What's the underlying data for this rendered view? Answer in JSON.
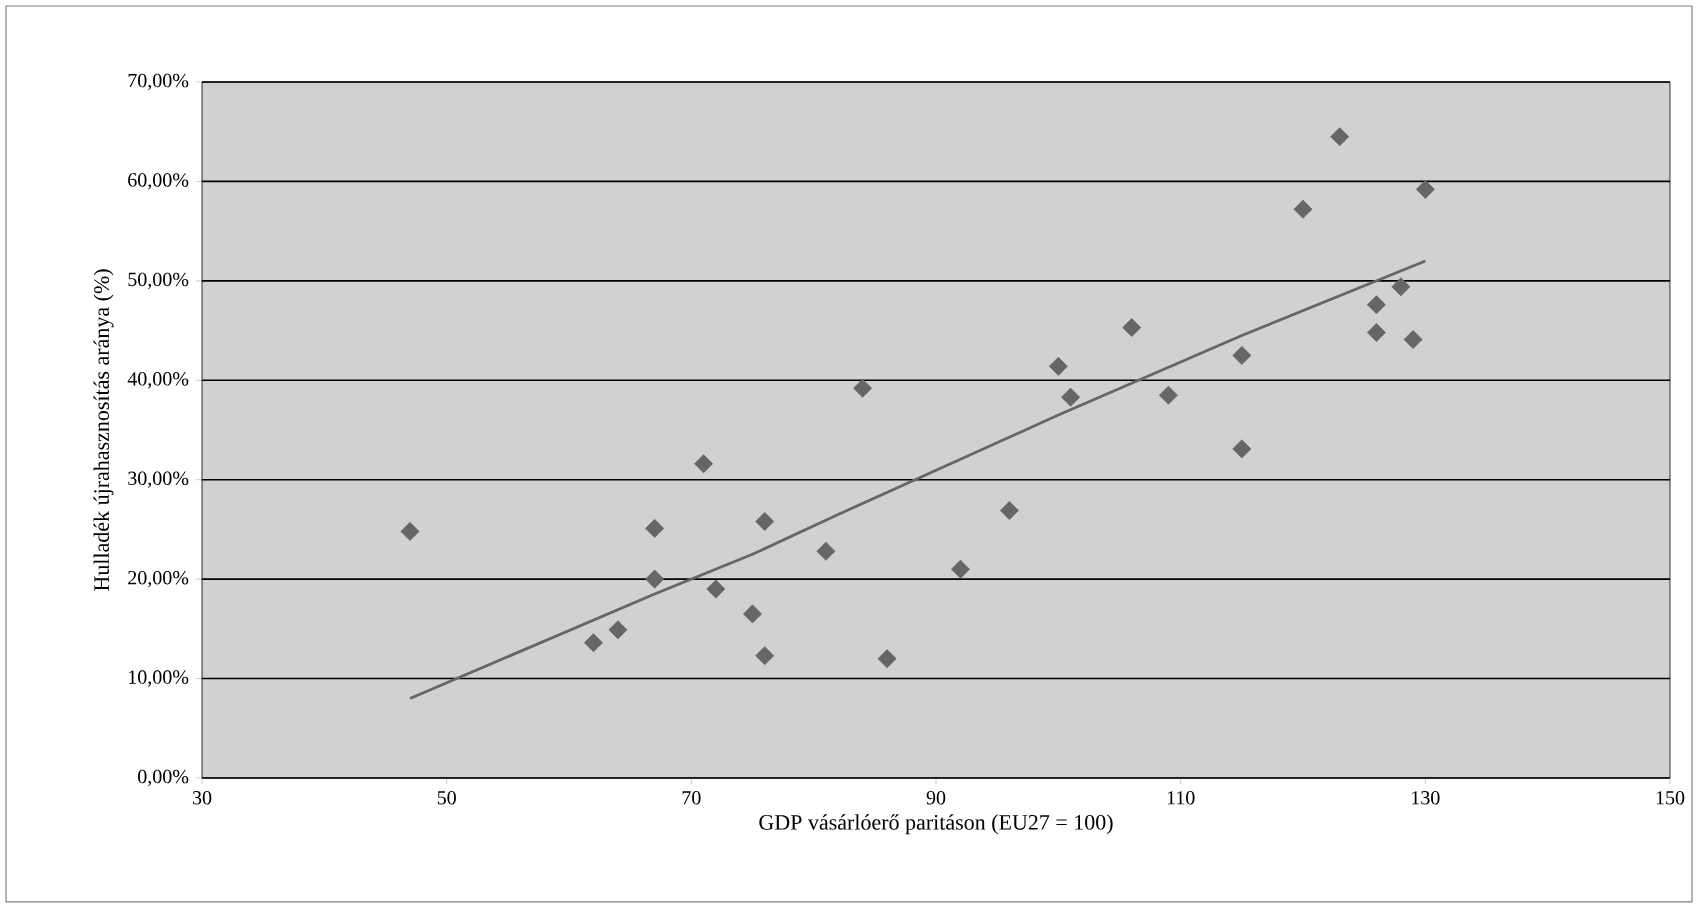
{
  "chart_data": {
    "type": "scatter",
    "xlabel": "GDP vásárlóerő paritáson (EU27 = 100)",
    "ylabel": "Hulladék újrahasznosítás aránya (%)",
    "xlim": [
      30,
      150
    ],
    "xticks": [
      30,
      50,
      70,
      90,
      110,
      130,
      150
    ],
    "ylim": [
      0,
      70
    ],
    "yticks": [
      {
        "value": 0,
        "label": "0,00%"
      },
      {
        "value": 10,
        "label": "10,00%"
      },
      {
        "value": 20,
        "label": "20,00%"
      },
      {
        "value": 30,
        "label": "30,00%"
      },
      {
        "value": 40,
        "label": "40,00%"
      },
      {
        "value": 50,
        "label": "50,00%"
      },
      {
        "value": 60,
        "label": "60,00%"
      },
      {
        "value": 70,
        "label": "70,00%"
      }
    ],
    "grid": "y",
    "series": [
      {
        "marker": "diamond",
        "color": "#666666",
        "x": [
          47,
          67,
          67,
          62,
          64,
          71,
          72,
          75,
          76,
          76,
          81,
          84,
          86,
          92,
          96,
          100,
          101,
          106,
          109,
          115,
          115,
          120,
          123,
          126,
          126,
          128,
          129,
          130
        ],
        "values": [
          24.8,
          25.1,
          20.0,
          13.6,
          14.9,
          31.6,
          19.0,
          16.5,
          25.8,
          12.3,
          22.8,
          39.2,
          12.0,
          21.0,
          26.9,
          41.4,
          38.3,
          45.3,
          38.5,
          42.5,
          33.1,
          57.2,
          64.5,
          47.6,
          44.8,
          49.4,
          44.1,
          59.2
        ]
      },
      {
        "type": "line",
        "color": "#666666",
        "x": [
          47,
          67,
          75,
          82,
          100,
          115,
          130
        ],
        "values": [
          8.0,
          18.5,
          22.5,
          26.5,
          36.5,
          44.5,
          52.0
        ]
      }
    ]
  }
}
